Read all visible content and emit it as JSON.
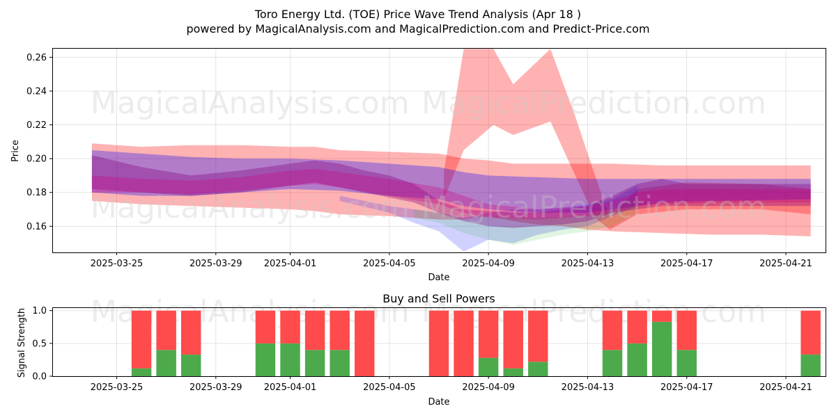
{
  "title_line1": "Toro Energy Ltd. (TOE) Price Wave Trend Analysis (Apr 18 )",
  "title_line2": "powered by MagicalAnalysis.com and MagicalPrediction.com and Predict-Price.com",
  "watermarks": [
    "MagicalAnalysis.com",
    "MagicalPrediction.com"
  ],
  "chart_data": [
    {
      "type": "area",
      "title": "Price Wave Trend Analysis",
      "xlabel": "Date",
      "ylabel": "Price",
      "ylim": [
        0.1445,
        0.2655
      ],
      "xlim_days": [
        -2.6,
        28.6
      ],
      "x_origin_date": "2025-03-25",
      "xtick_days": [
        0,
        4,
        7,
        11,
        15,
        19,
        23,
        27
      ],
      "xtick_labels": [
        "2025-03-25",
        "2025-03-29",
        "2025-04-01",
        "2025-04-05",
        "2025-04-09",
        "2025-04-13",
        "2025-04-17",
        "2025-04-21"
      ],
      "ytick_values": [
        0.16,
        0.18,
        0.2,
        0.22,
        0.24,
        0.26
      ],
      "ytick_labels": [
        "0.16",
        "0.18",
        "0.20",
        "0.22",
        "0.24",
        "0.26"
      ],
      "grid": true,
      "bands": [
        {
          "name": "red-envelope",
          "color": "#ff0000",
          "opacity": 0.3,
          "x": [
            -1,
            0,
            1,
            3,
            5,
            7,
            8,
            9,
            11,
            13,
            14,
            15,
            16,
            17,
            18,
            19,
            20,
            22,
            24,
            26,
            28
          ],
          "upper": [
            0.209,
            0.208,
            0.207,
            0.208,
            0.208,
            0.207,
            0.207,
            0.205,
            0.204,
            0.203,
            0.2,
            0.199,
            0.197,
            0.197,
            0.197,
            0.197,
            0.197,
            0.196,
            0.196,
            0.196,
            0.196
          ],
          "lower": [
            0.175,
            0.174,
            0.173,
            0.172,
            0.171,
            0.17,
            0.169,
            0.167,
            0.166,
            0.164,
            0.164,
            0.166,
            0.163,
            0.161,
            0.16,
            0.158,
            0.157,
            0.156,
            0.155,
            0.155,
            0.154
          ]
        },
        {
          "name": "red-spike",
          "color": "#ff0000",
          "opacity": 0.3,
          "x": [
            13.2,
            14.0,
            15.2,
            16.0,
            17.5,
            18.5,
            19.3,
            19.9,
            21,
            23,
            26,
            28
          ],
          "upper": [
            0.192,
            0.265,
            0.265,
            0.244,
            0.265,
            0.225,
            0.19,
            0.165,
            0.182,
            0.186,
            0.185,
            0.182
          ],
          "lower": [
            0.176,
            0.205,
            0.22,
            0.214,
            0.222,
            0.19,
            0.165,
            0.158,
            0.167,
            0.17,
            0.17,
            0.167
          ]
        },
        {
          "name": "blue-band",
          "color": "#0000ff",
          "opacity": 0.3,
          "x": [
            -1,
            1,
            3,
            5,
            7,
            9,
            11,
            13,
            14,
            15,
            17,
            19,
            20,
            21,
            22,
            24,
            28
          ],
          "upper": [
            0.205,
            0.203,
            0.201,
            0.2,
            0.2,
            0.199,
            0.197,
            0.195,
            0.192,
            0.19,
            0.189,
            0.188,
            0.188,
            0.188,
            0.188,
            0.188,
            0.188
          ],
          "lower": [
            0.18,
            0.178,
            0.178,
            0.18,
            0.182,
            0.181,
            0.178,
            0.176,
            0.172,
            0.17,
            0.168,
            0.168,
            0.17,
            0.172,
            0.174,
            0.175,
            0.176
          ]
        },
        {
          "name": "blue-dip",
          "color": "#0000ff",
          "opacity": 0.18,
          "x": [
            9,
            11,
            12,
            13,
            14,
            15,
            16,
            17,
            18,
            19,
            20,
            21
          ],
          "upper": [
            0.178,
            0.172,
            0.17,
            0.168,
            0.165,
            0.168,
            0.17,
            0.17,
            0.171,
            0.173,
            0.176,
            0.184
          ],
          "lower": [
            0.175,
            0.168,
            0.162,
            0.157,
            0.145,
            0.152,
            0.15,
            0.155,
            0.158,
            0.16,
            0.166,
            0.172
          ]
        },
        {
          "name": "green-dip",
          "color": "#00aa00",
          "opacity": 0.12,
          "x": [
            12,
            13,
            14,
            15,
            16,
            17,
            18,
            19,
            20,
            21
          ],
          "upper": [
            0.17,
            0.168,
            0.164,
            0.166,
            0.165,
            0.165,
            0.166,
            0.167,
            0.17,
            0.178
          ],
          "lower": [
            0.165,
            0.162,
            0.156,
            0.152,
            0.149,
            0.152,
            0.155,
            0.157,
            0.16,
            0.168
          ]
        },
        {
          "name": "purple-core",
          "color": "#800080",
          "opacity": 0.35,
          "x": [
            -1,
            1,
            3,
            5,
            7,
            8,
            9,
            10,
            11,
            12,
            13,
            14,
            15,
            16,
            17,
            18,
            19,
            20,
            21,
            22,
            23,
            24,
            26,
            28
          ],
          "upper": [
            0.202,
            0.195,
            0.19,
            0.193,
            0.197,
            0.199,
            0.197,
            0.193,
            0.19,
            0.185,
            0.175,
            0.17,
            0.169,
            0.168,
            0.168,
            0.17,
            0.172,
            0.178,
            0.185,
            0.188,
            0.185,
            0.185,
            0.185,
            0.185
          ],
          "lower": [
            0.182,
            0.18,
            0.178,
            0.18,
            0.184,
            0.186,
            0.183,
            0.18,
            0.177,
            0.174,
            0.168,
            0.163,
            0.16,
            0.159,
            0.16,
            0.161,
            0.163,
            0.168,
            0.17,
            0.172,
            0.172,
            0.172,
            0.172,
            0.172
          ]
        },
        {
          "name": "magenta-mid",
          "color": "#d0007a",
          "opacity": 0.3,
          "x": [
            -1,
            1,
            3,
            5,
            7,
            8,
            9,
            11,
            13,
            14,
            15,
            17,
            19,
            20,
            21,
            22,
            24,
            26,
            28
          ],
          "upper": [
            0.19,
            0.188,
            0.187,
            0.189,
            0.193,
            0.194,
            0.192,
            0.188,
            0.183,
            0.178,
            0.173,
            0.17,
            0.172,
            0.175,
            0.18,
            0.182,
            0.182,
            0.182,
            0.182
          ],
          "lower": [
            0.18,
            0.18,
            0.179,
            0.181,
            0.184,
            0.185,
            0.183,
            0.178,
            0.173,
            0.168,
            0.165,
            0.164,
            0.166,
            0.168,
            0.172,
            0.173,
            0.174,
            0.174,
            0.174
          ]
        }
      ]
    },
    {
      "type": "bar",
      "title": "Buy and Sell Powers",
      "xlabel": "Date",
      "ylabel": "Signal Strength",
      "ylim": [
        0,
        1.05
      ],
      "xlim_days": [
        -2.6,
        28.6
      ],
      "x_origin_date": "2025-03-25",
      "xtick_days": [
        0,
        4,
        7,
        11,
        15,
        19,
        23,
        27
      ],
      "xtick_labels": [
        "2025-03-25",
        "2025-03-29",
        "2025-04-01",
        "2025-04-05",
        "2025-04-09",
        "2025-04-13",
        "2025-04-17",
        "2025-04-21"
      ],
      "ytick_values": [
        0,
        0.5,
        1.0
      ],
      "ytick_labels": [
        "0.0",
        "0.5",
        "1.0"
      ],
      "days": [
        1,
        2,
        3,
        6,
        7,
        8,
        9,
        10,
        13,
        14,
        15,
        16,
        17,
        20,
        21,
        22,
        23,
        28
      ],
      "categories": [
        "2025-03-26",
        "2025-03-27",
        "2025-03-28",
        "2025-03-31",
        "2025-04-01",
        "2025-04-02",
        "2025-04-03",
        "2025-04-04",
        "2025-04-07",
        "2025-04-08",
        "2025-04-09",
        "2025-04-10",
        "2025-04-11",
        "2025-04-14",
        "2025-04-15",
        "2025-04-16",
        "2025-04-17",
        "2025-04-22"
      ],
      "series": [
        {
          "name": "Buy",
          "color": "#4caa4c",
          "values": [
            0.12,
            0.4,
            0.33,
            0.5,
            0.5,
            0.4,
            0.4,
            0.0,
            0.0,
            0.0,
            0.28,
            0.12,
            0.22,
            0.4,
            0.5,
            0.83,
            0.4,
            0.33
          ]
        },
        {
          "name": "Sell",
          "color": "#ff4b4b",
          "values": [
            0.88,
            0.6,
            0.67,
            0.5,
            0.5,
            0.6,
            0.6,
            1.0,
            1.0,
            1.0,
            0.72,
            0.88,
            0.78,
            0.6,
            0.5,
            0.17,
            0.6,
            0.67
          ]
        }
      ]
    }
  ]
}
